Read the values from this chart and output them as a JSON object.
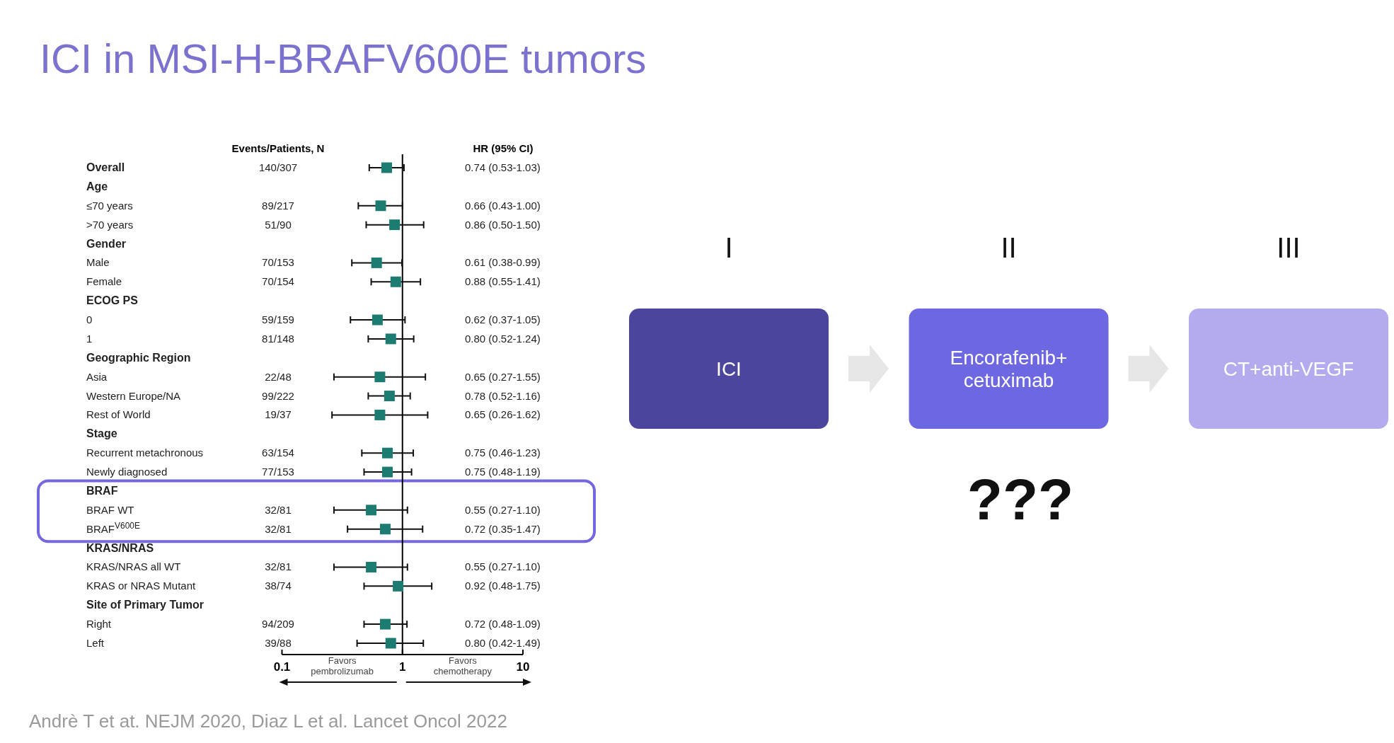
{
  "chart_data": [
    {
      "type": "scatter",
      "title": "ICI in MSI-H-BRAFV600E tumors",
      "orientation": "horizontal",
      "color": "#1d7c71",
      "marker": "square",
      "log": "x",
      "xlim": [
        0.1,
        10
      ],
      "xticks": [
        0.1,
        1,
        10
      ],
      "categories": [
        "Overall",
        "Age",
        "≤70 years",
        ">70 years",
        "Gender",
        "Male",
        "Female",
        "ECOG PS",
        "0",
        "1",
        "Geographic Region",
        "Asia",
        "Western Europe/NA",
        "Rest of World",
        "Stage",
        "Recurrent metachronous",
        "Newly diagnosed",
        "BRAF",
        "BRAF WT",
        "BRAF$^{V600E}$",
        "KRAS/NRAS",
        "KRAS/NRAS all WT",
        "KRAS or NRAS Mutant",
        "Site of Primary Tumor",
        "Right",
        "Left"
      ],
      "values": [
        0.74,
        null,
        0.66,
        0.86,
        null,
        0.61,
        0.88,
        null,
        0.62,
        0.8,
        null,
        0.65,
        0.78,
        0.65,
        null,
        0.75,
        0.75,
        null,
        0.55,
        0.72,
        null,
        0.55,
        0.92,
        null,
        0.72,
        0.8
      ],
      "errors": [
        [
          0.53,
          1.03
        ],
        null,
        [
          0.43,
          1.0
        ],
        [
          0.5,
          1.5
        ],
        null,
        [
          0.38,
          0.99
        ],
        [
          0.55,
          1.41
        ],
        null,
        [
          0.37,
          1.05
        ],
        [
          0.52,
          1.24
        ],
        null,
        [
          0.27,
          1.55
        ],
        [
          0.52,
          1.16
        ],
        [
          0.26,
          1.62
        ],
        null,
        [
          0.46,
          1.23
        ],
        [
          0.48,
          1.19
        ],
        null,
        [
          0.27,
          1.1
        ],
        [
          0.35,
          1.47
        ],
        null,
        [
          0.27,
          1.1
        ],
        [
          0.48,
          1.75
        ],
        null,
        [
          0.48,
          1.09
        ],
        [
          0.42,
          1.49
        ]
      ],
      "ref_lines": [
        {
          "axis": "x",
          "value": 1
        }
      ],
      "annotations": [
        "Events/Patients, N",
        "HR (95% CI)",
        "Favors pembrolizumab",
        "Favors chemotherapy",
        "Andrè T et at. NEJM 2020, Diaz L et al. Lancet Oncol 2022",
        "140/307",
        "89/217",
        "51/90",
        "70/153",
        "70/154",
        "59/159",
        "81/148",
        "22/48",
        "99/222",
        "19/37",
        "63/154",
        "77/153",
        "32/81",
        "32/81",
        "32/81",
        "38/74",
        "94/209",
        "39/88",
        "0.74 (0.53-1.03)",
        "0.66 (0.43-1.00)",
        "0.86 (0.50-1.50)",
        "0.61 (0.38-0.99)",
        "0.88 (0.55-1.41)",
        "0.62 (0.37-1.05)",
        "0.80 (0.52-1.24)",
        "0.65 (0.27-1.55)",
        "0.78 (0.52-1.16)",
        "0.65 (0.26-1.62)",
        "0.75 (0.46-1.23)",
        "0.75 (0.48-1.19)",
        "0.55 (0.27-1.10)",
        "0.72 (0.35-1.47)",
        "0.55 (0.27-1.10)",
        "0.92 (0.48-1.75)",
        "0.72 (0.48-1.09)",
        "0.80 (0.42-1.49)"
      ]
    },
    {
      "type": "other",
      "annotations": [
        "I",
        "II",
        "III",
        "ICI",
        "Encorafenib+ cetuximab",
        "CT+anti-VEGF",
        "???"
      ]
    }
  ]
}
